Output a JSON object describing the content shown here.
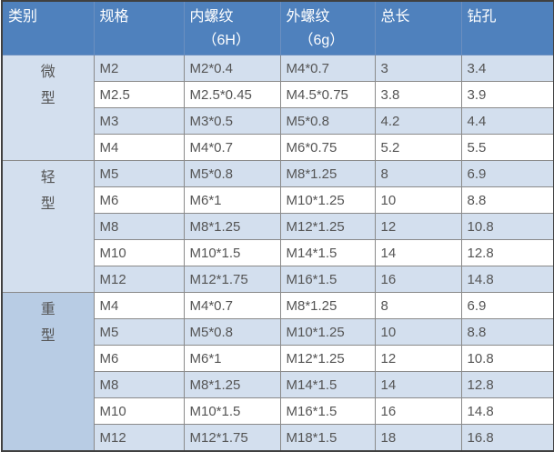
{
  "headers": [
    {
      "main": "类别",
      "sub": ""
    },
    {
      "main": "规格",
      "sub": ""
    },
    {
      "main": "内螺纹",
      "sub": "（6H）"
    },
    {
      "main": "外螺纹",
      "sub": "（6g）"
    },
    {
      "main": "总长",
      "sub": ""
    },
    {
      "main": "钻孔",
      "sub": ""
    }
  ],
  "colors": {
    "header_bg": "#4f81bd",
    "row_shade": "#d3dfee",
    "heavy_category_bg": "#b8cce4"
  },
  "groups": [
    {
      "category": [
        "微",
        "型"
      ],
      "rows": [
        [
          "M2",
          "M2*0.4",
          "M4*0.7",
          "3",
          "3.4"
        ],
        [
          "M2.5",
          "M2.5*0.45",
          "M4.5*0.75",
          "3.8",
          "3.9"
        ],
        [
          "M3",
          "M3*0.5",
          "M5*0.8",
          "4.2",
          "4.4"
        ],
        [
          "M4",
          "M4*0.7",
          "M6*0.75",
          "5.2",
          "5.5"
        ]
      ]
    },
    {
      "category": [
        "轻",
        "型"
      ],
      "rows": [
        [
          "M5",
          "M5*0.8",
          "M8*1.25",
          "8",
          "6.9"
        ],
        [
          "M6",
          "M6*1",
          "M10*1.25",
          "10",
          "8.8"
        ],
        [
          "M8",
          "M8*1.25",
          "M12*1.25",
          "12",
          "10.8"
        ],
        [
          "M10",
          "M10*1.5",
          "M14*1.5",
          "14",
          "12.8"
        ],
        [
          "M12",
          "M12*1.75",
          "M16*1.5",
          "16",
          "14.8"
        ]
      ]
    },
    {
      "category": [
        "重",
        "型"
      ],
      "rows": [
        [
          "M4",
          "M4*0.7",
          "M8*1.25",
          "8",
          "6.9"
        ],
        [
          "M5",
          "M5*0.8",
          "M10*1.25",
          "10",
          "8.8"
        ],
        [
          "M6",
          "M6*1",
          "M12*1.25",
          "12",
          "10.8"
        ],
        [
          "M8",
          "M8*1.25",
          "M14*1.5",
          "14",
          "12.8"
        ],
        [
          "M10",
          "M10*1.5",
          "M16*1.5",
          "16",
          "14.8"
        ],
        [
          "M12",
          "M12*1.75",
          "M18*1.5",
          "18",
          "16.8"
        ]
      ]
    }
  ]
}
